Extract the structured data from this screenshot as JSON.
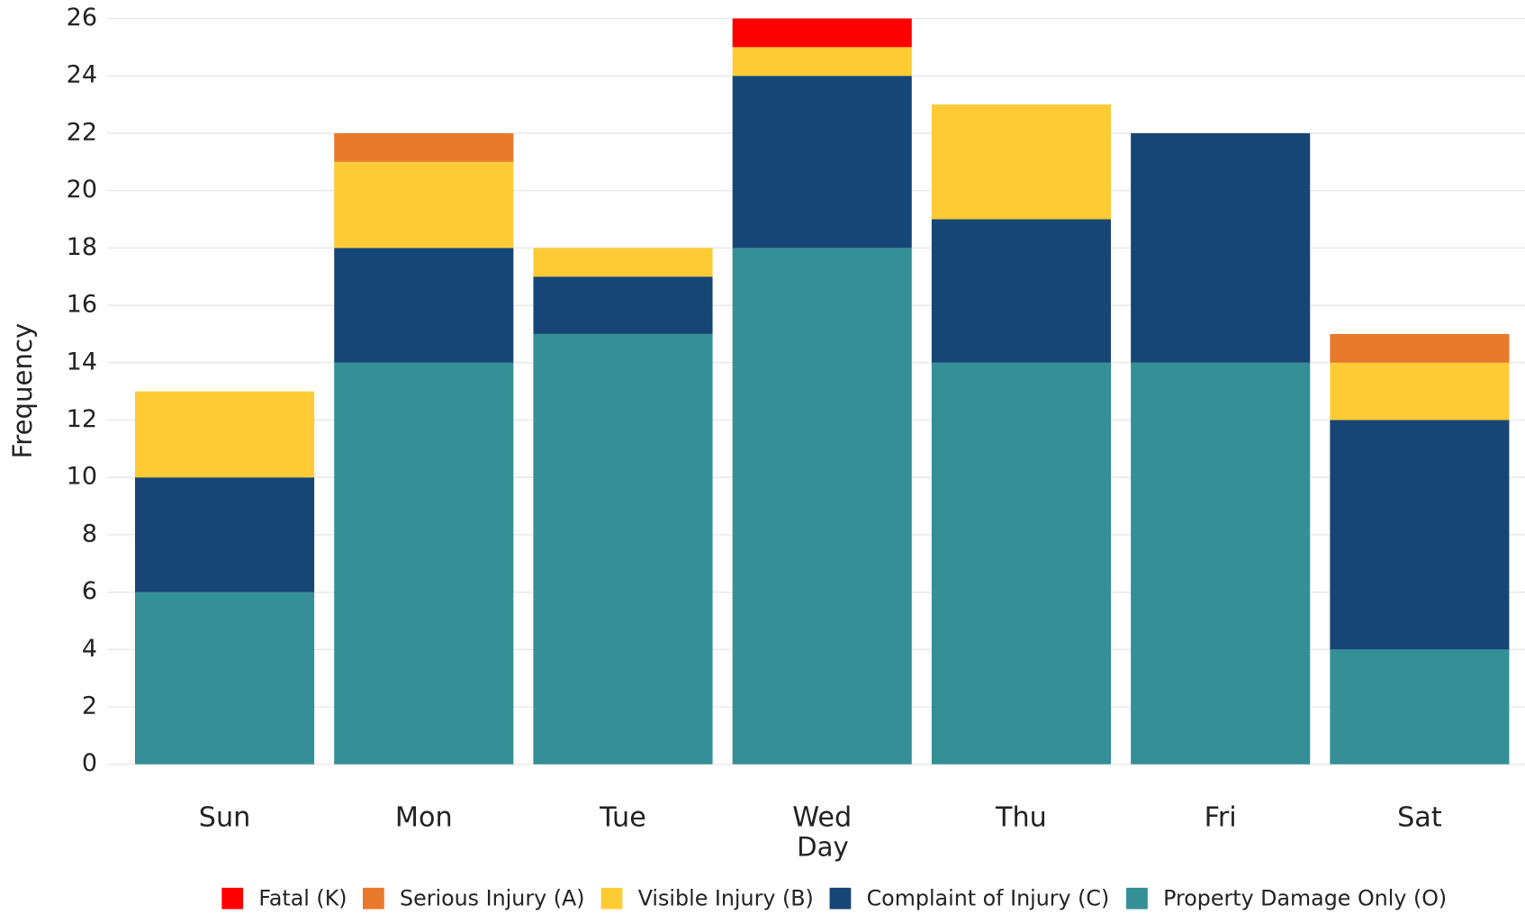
{
  "chart_data": {
    "type": "stacked_bar",
    "x_label": "Day",
    "y_label": "Frequency",
    "categories": [
      "Sun",
      "Mon",
      "Tue",
      "Wed",
      "Thu",
      "Fri",
      "Sat"
    ],
    "series": [
      {
        "name": "Property Damage Only (O)",
        "color": "#358f97",
        "values": [
          6,
          14,
          15,
          18,
          14,
          14,
          4
        ]
      },
      {
        "name": "Complaint of Injury (C)",
        "color": "#164675",
        "values": [
          4,
          4,
          2,
          6,
          5,
          8,
          8
        ]
      },
      {
        "name": "Visible Injury (B)",
        "color": "#fecb35",
        "values": [
          3,
          3,
          1,
          1,
          4,
          0,
          2
        ]
      },
      {
        "name": "Serious Injury (A)",
        "color": "#e8792b",
        "values": [
          0,
          1,
          0,
          0,
          0,
          0,
          1
        ]
      },
      {
        "name": "Fatal (K)",
        "color": "#ff0000",
        "values": [
          0,
          0,
          0,
          1,
          0,
          0,
          0
        ]
      }
    ],
    "ylim": [
      0,
      26
    ],
    "yticks": [
      0,
      2,
      4,
      6,
      8,
      10,
      12,
      14,
      16,
      18,
      20,
      22,
      24,
      26
    ],
    "grid": true,
    "legend": "bottom"
  }
}
